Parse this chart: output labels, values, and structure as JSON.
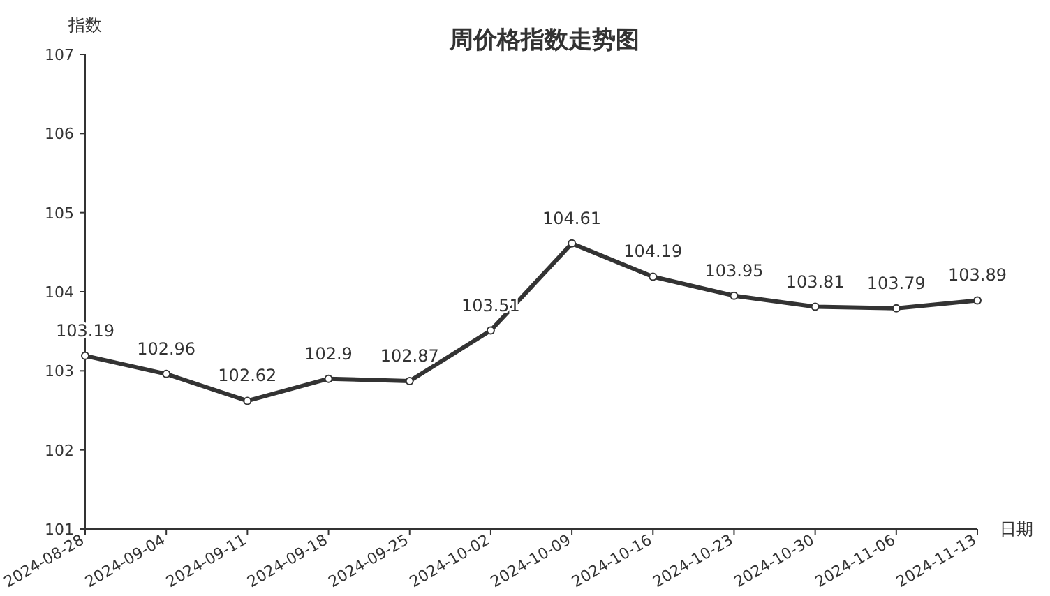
{
  "chart_data": {
    "type": "line",
    "title": "周价格指数走势图",
    "xlabel": "日期",
    "ylabel": "指数",
    "categories": [
      "2024-08-28",
      "2024-09-04",
      "2024-09-11",
      "2024-09-18",
      "2024-09-25",
      "2024-10-02",
      "2024-10-09",
      "2024-10-16",
      "2024-10-23",
      "2024-10-30",
      "2024-11-06",
      "2024-11-13"
    ],
    "series": [
      {
        "color": "#333333",
        "values": [
          103.19,
          102.96,
          102.62,
          102.9,
          102.87,
          103.51,
          104.61,
          104.19,
          103.95,
          103.81,
          103.79,
          103.89
        ]
      }
    ],
    "ylim": [
      101,
      107
    ],
    "yticks": [
      101,
      102,
      103,
      104,
      105,
      106,
      107
    ],
    "data_labels": true,
    "marker": "circle",
    "grid": false
  }
}
